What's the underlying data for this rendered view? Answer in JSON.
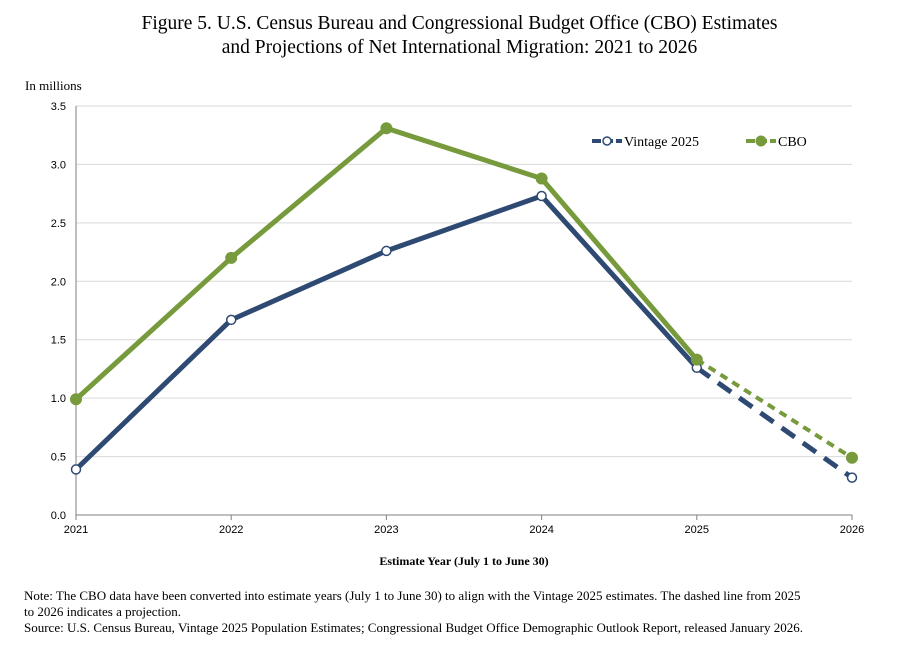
{
  "title": {
    "line1": "Figure 5. U.S. Census Bureau and Congressional Budget Office (CBO) Estimates",
    "line2": "and Projections of Net International Migration: 2021 to 2026"
  },
  "unit_label": "In millions",
  "colors": {
    "vintage": "#2e4a73",
    "cbo": "#779a3c",
    "grid": "#d9d9d9",
    "axis": "#7f7f7f"
  },
  "chart_data": {
    "type": "line",
    "title": "Figure 5. U.S. Census Bureau and Congressional Budget Office (CBO) Estimates and Projections of Net International Migration: 2021 to 2026",
    "xlabel": "Estimate Year (July 1 to June 30)",
    "ylabel": "In millions",
    "x": [
      2021,
      2022,
      2023,
      2024,
      2025,
      2026
    ],
    "x_tick_labels": [
      "2021",
      "2022",
      "2023",
      "2024",
      "2025",
      "2026"
    ],
    "ylim": [
      0,
      3.5
    ],
    "y_ticks": [
      0,
      0.5,
      1.0,
      1.5,
      2.0,
      2.5,
      3.0,
      3.5
    ],
    "y_tick_labels": [
      "0.0",
      "0.5",
      "1.0",
      "1.5",
      "2.0",
      "2.5",
      "3.0",
      "3.5"
    ],
    "grid": true,
    "legend": "top-right",
    "projection_from": 2025,
    "series": [
      {
        "name": "Vintage 2025",
        "values": [
          0.39,
          1.67,
          2.26,
          2.73,
          1.26,
          0.32
        ],
        "marker": "hollow-circle"
      },
      {
        "name": "CBO",
        "values": [
          0.99,
          2.2,
          3.31,
          2.88,
          1.33,
          0.49
        ],
        "marker": "filled-circle"
      }
    ]
  },
  "note": {
    "line1": "Note: The CBO data have been converted into estimate years (July 1 to June 30) to align with the Vintage 2025 estimates. The dashed line from 2025",
    "line2": "to 2026 indicates a projection.",
    "source": "Source:  U.S. Census Bureau, Vintage 2025 Population Estimates; Congressional Budget Office Demographic Outlook Report, released January 2026."
  }
}
